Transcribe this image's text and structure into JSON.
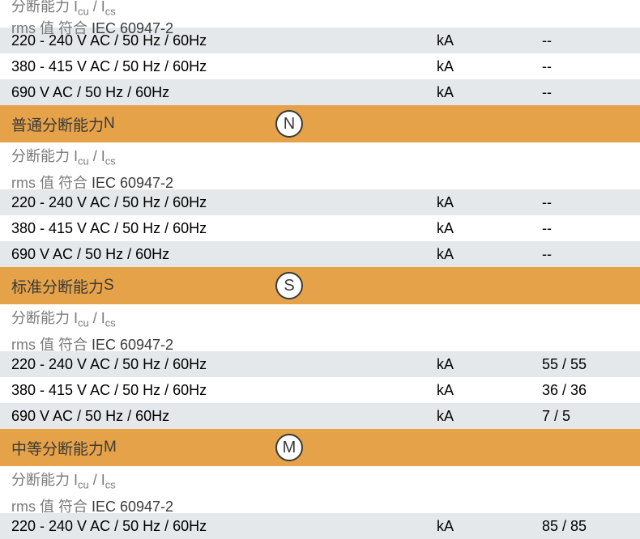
{
  "colors": {
    "header_bg": "#e5a248",
    "row_grey": "#e5e8ea",
    "row_white": "#ffffff",
    "text_black": "#000000",
    "text_grey": "#7a7a7a",
    "text_dark": "#3a3a3a"
  },
  "top_partial": {
    "line1_1": "分断能力 I",
    "line1_sub1": "cu",
    "line1_2": " /  I",
    "line1_sub2": "cs",
    "line2_grey": "rms 值 符合 ",
    "line2_black": "IEC 60947-2"
  },
  "sections": [
    {
      "id": "top",
      "rows": [
        {
          "desc": "220 - 240 V AC / 50 Hz / 60Hz",
          "unit": "kA",
          "value": "--",
          "bg": "grey"
        },
        {
          "desc": "380 - 415 V AC / 50 Hz / 60Hz",
          "unit": "kA",
          "value": "--",
          "bg": "white"
        },
        {
          "desc": "690 V AC / 50 Hz / 60Hz",
          "unit": "kA",
          "value": "--",
          "bg": "grey"
        }
      ]
    }
  ],
  "header_n": {
    "label": "普通分断能力 ",
    "letter": "N",
    "circle": "N"
  },
  "subheader": {
    "line1_1": "分断能力 I",
    "line1_sub1": "cu",
    "line1_2": " /  I",
    "line1_sub2": "cs",
    "line2_grey": "rms 值 符合 ",
    "line2_black": "IEC 60947-2"
  },
  "section_n_rows": [
    {
      "desc": "220 - 240 V AC / 50 Hz / 60Hz",
      "unit": "kA",
      "value": "--",
      "bg": "grey"
    },
    {
      "desc": "380 - 415 V AC / 50 Hz / 60Hz",
      "unit": "kA",
      "value": "--",
      "bg": "white"
    },
    {
      "desc": "690 V AC / 50 Hz / 60Hz",
      "unit": "kA",
      "value": "--",
      "bg": "grey"
    }
  ],
  "header_s": {
    "label": "标准分断能力 ",
    "letter": "S",
    "circle": "S"
  },
  "section_s_rows": [
    {
      "desc": "220 - 240 V AC / 50 Hz / 60Hz",
      "unit": "kA",
      "value": "55 / 55",
      "bg": "grey"
    },
    {
      "desc": "380 - 415 V AC / 50 Hz / 60Hz",
      "unit": "kA",
      "value": "36 / 36",
      "bg": "white"
    },
    {
      "desc": "690 V AC / 50 Hz / 60Hz",
      "unit": "kA",
      "value": "7 / 5",
      "bg": "grey"
    }
  ],
  "header_m": {
    "label": "中等分断能力 ",
    "letter": "M",
    "circle": "M"
  },
  "section_m_rows": [
    {
      "desc": "220 - 240 V AC / 50 Hz / 60Hz",
      "unit": "kA",
      "value": "85 / 85",
      "bg": "grey"
    }
  ]
}
